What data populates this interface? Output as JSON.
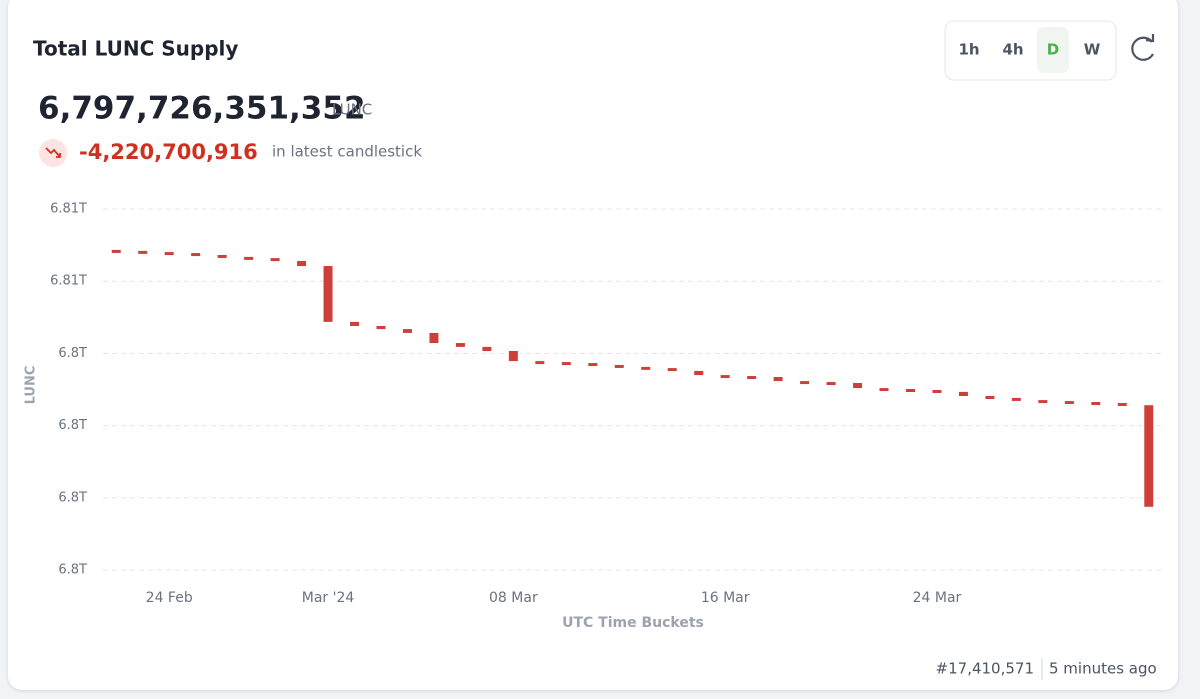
{
  "header": {
    "title": "Total LUNC Supply",
    "value": "6,797,726,351,352",
    "unit": "LUNC",
    "change": "-4,220,700,916",
    "change_note": "in latest candlestick"
  },
  "timeframes": {
    "options": [
      "1h",
      "4h",
      "D",
      "W"
    ],
    "active": "D"
  },
  "chart_data": {
    "type": "candlestick",
    "color": "#cf3f3a",
    "grid": true,
    "ylabel": "LUNC",
    "xlabel": "UTC Time Buckets",
    "categories": [
      null,
      null,
      "24 Feb",
      null,
      null,
      null,
      null,
      null,
      "Mar '24",
      null,
      null,
      null,
      null,
      null,
      null,
      "08 Mar",
      null,
      null,
      null,
      null,
      null,
      null,
      null,
      "16 Mar",
      null,
      null,
      null,
      null,
      null,
      null,
      null,
      "24 Mar",
      null,
      null,
      null,
      null,
      null,
      null,
      null,
      null
    ],
    "open": [
      6808400000000,
      6808360000000,
      6808310000000,
      6808270000000,
      6808190000000,
      6808110000000,
      6808060000000,
      6807940000000,
      6807730000000,
      6805410000000,
      6805240000000,
      6805110000000,
      6804950000000,
      6804530000000,
      6804370000000,
      6804200000000,
      6803780000000,
      6803740000000,
      6803700000000,
      6803620000000,
      6803540000000,
      6803490000000,
      6803370000000,
      6803200000000,
      6803160000000,
      6803120000000,
      6802950000000,
      6802910000000,
      6802870000000,
      6802660000000,
      6802620000000,
      6802580000000,
      6802500000000,
      6802330000000,
      6802250000000,
      6802160000000,
      6802120000000,
      6802080000000,
      6802040000000,
      6801947052268
    ],
    "close": [
      6808360000000,
      6808310000000,
      6808270000000,
      6808190000000,
      6808110000000,
      6808060000000,
      6807940000000,
      6807730000000,
      6805410000000,
      6805240000000,
      6805110000000,
      6804950000000,
      6804530000000,
      6804370000000,
      6804200000000,
      6803780000000,
      6803740000000,
      6803700000000,
      6803620000000,
      6803540000000,
      6803490000000,
      6803370000000,
      6803200000000,
      6803160000000,
      6803120000000,
      6802950000000,
      6802910000000,
      6802870000000,
      6802660000000,
      6802620000000,
      6802580000000,
      6802500000000,
      6802330000000,
      6802250000000,
      6802160000000,
      6802120000000,
      6802080000000,
      6802040000000,
      6801947052268,
      6797726351352
    ],
    "ylim": [
      6795100000000,
      6810100000000
    ],
    "yticks": [
      {
        "value": 6795100000000,
        "label": "6.8T"
      },
      {
        "value": 6798100000000,
        "label": "6.8T"
      },
      {
        "value": 6801100000000,
        "label": "6.8T"
      },
      {
        "value": 6804100000000,
        "label": "6.8T"
      },
      {
        "value": 6807100000000,
        "label": "6.81T"
      },
      {
        "value": 6810100000000,
        "label": "6.81T"
      }
    ]
  },
  "footer": {
    "block": "#17,410,571",
    "updated": "5 minutes ago"
  }
}
